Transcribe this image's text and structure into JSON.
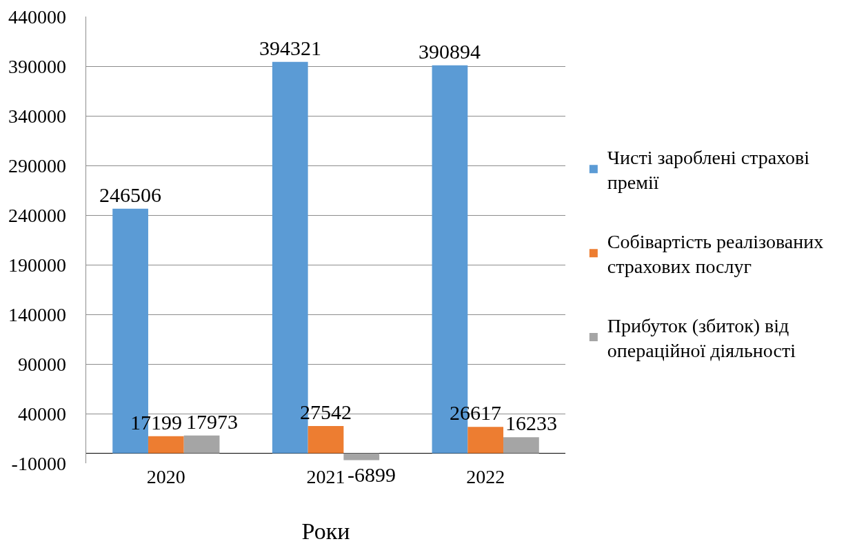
{
  "chart_data": {
    "type": "bar",
    "xlabel": "Роки",
    "categories": [
      "2020",
      "2021",
      "2022"
    ],
    "series": [
      {
        "name": "Чисті зароблені страхові премії",
        "color": "#5b9bd5",
        "values": [
          246506,
          394321,
          390894
        ]
      },
      {
        "name": "Собівартість реалізованих страхових послуг",
        "color": "#ed7d31",
        "values": [
          17199,
          27542,
          26617
        ]
      },
      {
        "name": "Прибуток (збиток) від операційної діяльності",
        "color": "#a5a5a5",
        "values": [
          17973,
          -6899,
          16233
        ]
      }
    ],
    "ylim": [
      -10000,
      440000
    ],
    "yticks": [
      -10000,
      40000,
      90000,
      140000,
      190000,
      240000,
      290000,
      340000,
      390000,
      440000
    ],
    "grid": "y",
    "legend": "right",
    "data_labels": true
  }
}
